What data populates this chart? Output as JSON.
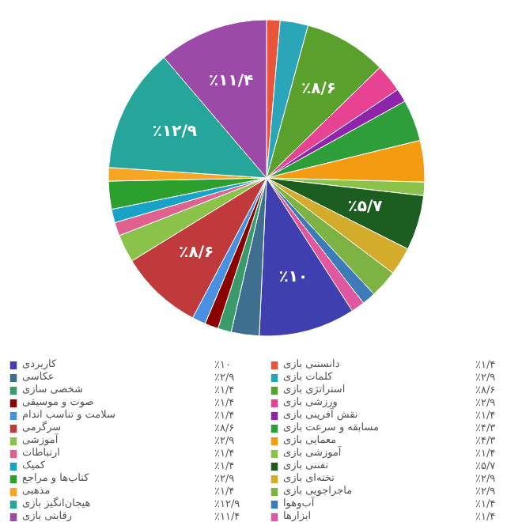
{
  "chart_data": {
    "type": "pie",
    "legend": "bottom",
    "categories": [
      "دانستنی بازی",
      "کلمات بازی",
      "استراتژی بازی",
      "ورزشی بازی",
      "نقش آفرینی بازی",
      "مسابقه و سرعت بازی",
      "معمایی بازی",
      "آموزشی بازی",
      "تفننی بازی",
      "تخته‌ای بازی",
      "ماجراجویی بازی",
      "آب‌وهوا",
      "ابزارها",
      "کاربردی",
      "عکاسی",
      "شخصی سازی",
      "صوت و موسیقی",
      "سلامت و تناسب اندام",
      "سرگرمی",
      "آموزشی",
      "ارتباطات",
      "کمیک",
      "کتاب‌ها و مراجع",
      "مذهبی",
      "هیجان‌انگیز بازی",
      "رقابتی بازی"
    ],
    "values": [
      1.4,
      2.9,
      8.6,
      2.9,
      1.4,
      4.3,
      4.3,
      1.4,
      5.7,
      2.9,
      2.9,
      1.4,
      1.4,
      10,
      2.9,
      1.4,
      1.4,
      1.4,
      8.6,
      2.9,
      1.4,
      1.4,
      2.9,
      1.4,
      12.9,
      11.4
    ],
    "value_labels": [
      "٪۱/۴",
      "٪۲/۹",
      "٪۸/۶",
      "٪۲/۹",
      "٪۱/۴",
      "٪۴/۳",
      "٪۴/۳",
      "٪۱/۴",
      "٪۵/۷",
      "٪۲/۹",
      "٪۲/۹",
      "٪۱/۴",
      "٪۱/۴",
      "٪۱۰",
      "٪۲/۹",
      "٪۱/۴",
      "٪۱/۴",
      "٪۱/۴",
      "٪۸/۶",
      "٪۲/۹",
      "٪۱/۴",
      "٪۱/۴",
      "٪۲/۹",
      "٪۱/۴",
      "٪۱۲/۹",
      "٪۱۱/۴"
    ],
    "colors": [
      "#e8553a",
      "#2aa6b8",
      "#5aa02c",
      "#e84393",
      "#8e24aa",
      "#2e9e3a",
      "#f39c12",
      "#8bc34a",
      "#1b5e20",
      "#d4ac2b",
      "#7cb342",
      "#3d7ab8",
      "#e056a0",
      "#3f3fb0",
      "#3f6f8f",
      "#3a9a6a",
      "#8b0000",
      "#4a90e2",
      "#c0393b",
      "#8bc34a",
      "#e06090",
      "#17a2c8",
      "#2ca02c",
      "#f5a623",
      "#26a69a",
      "#9c4aa8"
    ]
  }
}
